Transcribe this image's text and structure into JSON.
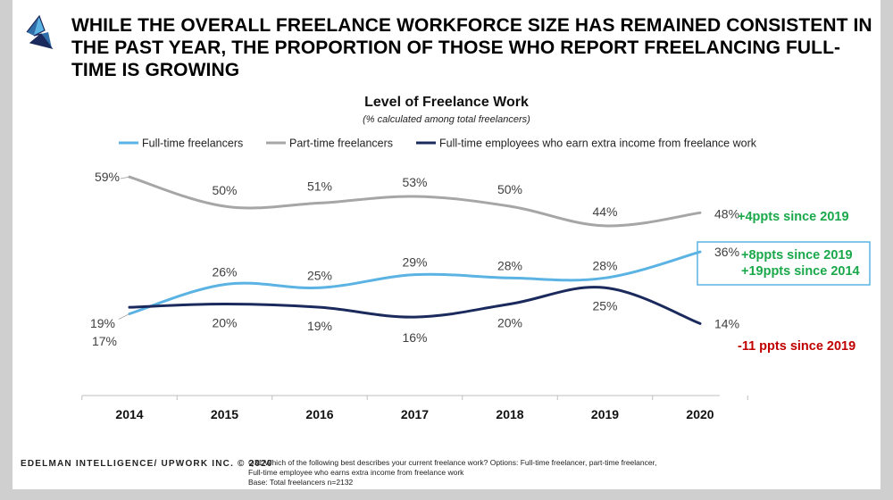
{
  "headline": "WHILE THE OVERALL FREELANCE WORKFORCE SIZE HAS REMAINED CONSISTENT IN THE PAST YEAR, THE PROPORTION OF THOSE WHO REPORT FREELANCING FULL-TIME IS GROWING",
  "footer": {
    "brand": "EDELMAN INTELLIGENCE/ UPWORK INC. © 2020",
    "note_lines": [
      "Q31:Which of the following best describes your current freelance work? Options: Full-time freelancer, part-time freelancer,",
      "Full-time employee who earns extra income from freelance work",
      "Base: Total freelancers n=2132"
    ]
  },
  "colors": {
    "full_time": "#5bb3e3",
    "part_time": "#a6a6a6",
    "employees": "#1b2a5c",
    "positive": "#1aa84b",
    "negative": "#c00000",
    "axis": "#bfbfbf"
  },
  "chart_data": {
    "type": "line",
    "title": "Level of Freelance Work",
    "subtitle": "(% calculated among total freelancers)",
    "x": [
      "2014",
      "2015",
      "2016",
      "2017",
      "2018",
      "2019",
      "2020"
    ],
    "legend_position": "top",
    "grid": false,
    "series": [
      {
        "name": "Full-time freelancers",
        "values": [
          17,
          26,
          25,
          29,
          28,
          28,
          36
        ],
        "labels": [
          "17%",
          "26%",
          "25%",
          "29%",
          "28%",
          "28%",
          "36%"
        ],
        "color_key": "full_time"
      },
      {
        "name": "Part-time freelancers",
        "values": [
          59,
          50,
          51,
          53,
          50,
          44,
          48
        ],
        "labels": [
          "59%",
          "50%",
          "51%",
          "53%",
          "50%",
          "44%",
          "48%"
        ],
        "color_key": "part_time"
      },
      {
        "name": "Full-time employees who earn extra income from freelance work",
        "values": [
          19,
          20,
          19,
          16,
          20,
          25,
          14
        ],
        "labels": [
          "19%",
          "20%",
          "19%",
          "16%",
          "20%",
          "25%",
          "14%"
        ],
        "color_key": "employees"
      }
    ],
    "annotations": [
      {
        "series": 1,
        "lines": [
          "+4ppts since 2019"
        ],
        "color_key": "positive",
        "boxed": false
      },
      {
        "series": 0,
        "lines": [
          "+8ppts since 2019",
          "+19ppts since 2014"
        ],
        "color_key": "positive",
        "boxed": true
      },
      {
        "series": 2,
        "lines": [
          "-11 ppts since 2019"
        ],
        "color_key": "negative",
        "boxed": false
      }
    ]
  }
}
